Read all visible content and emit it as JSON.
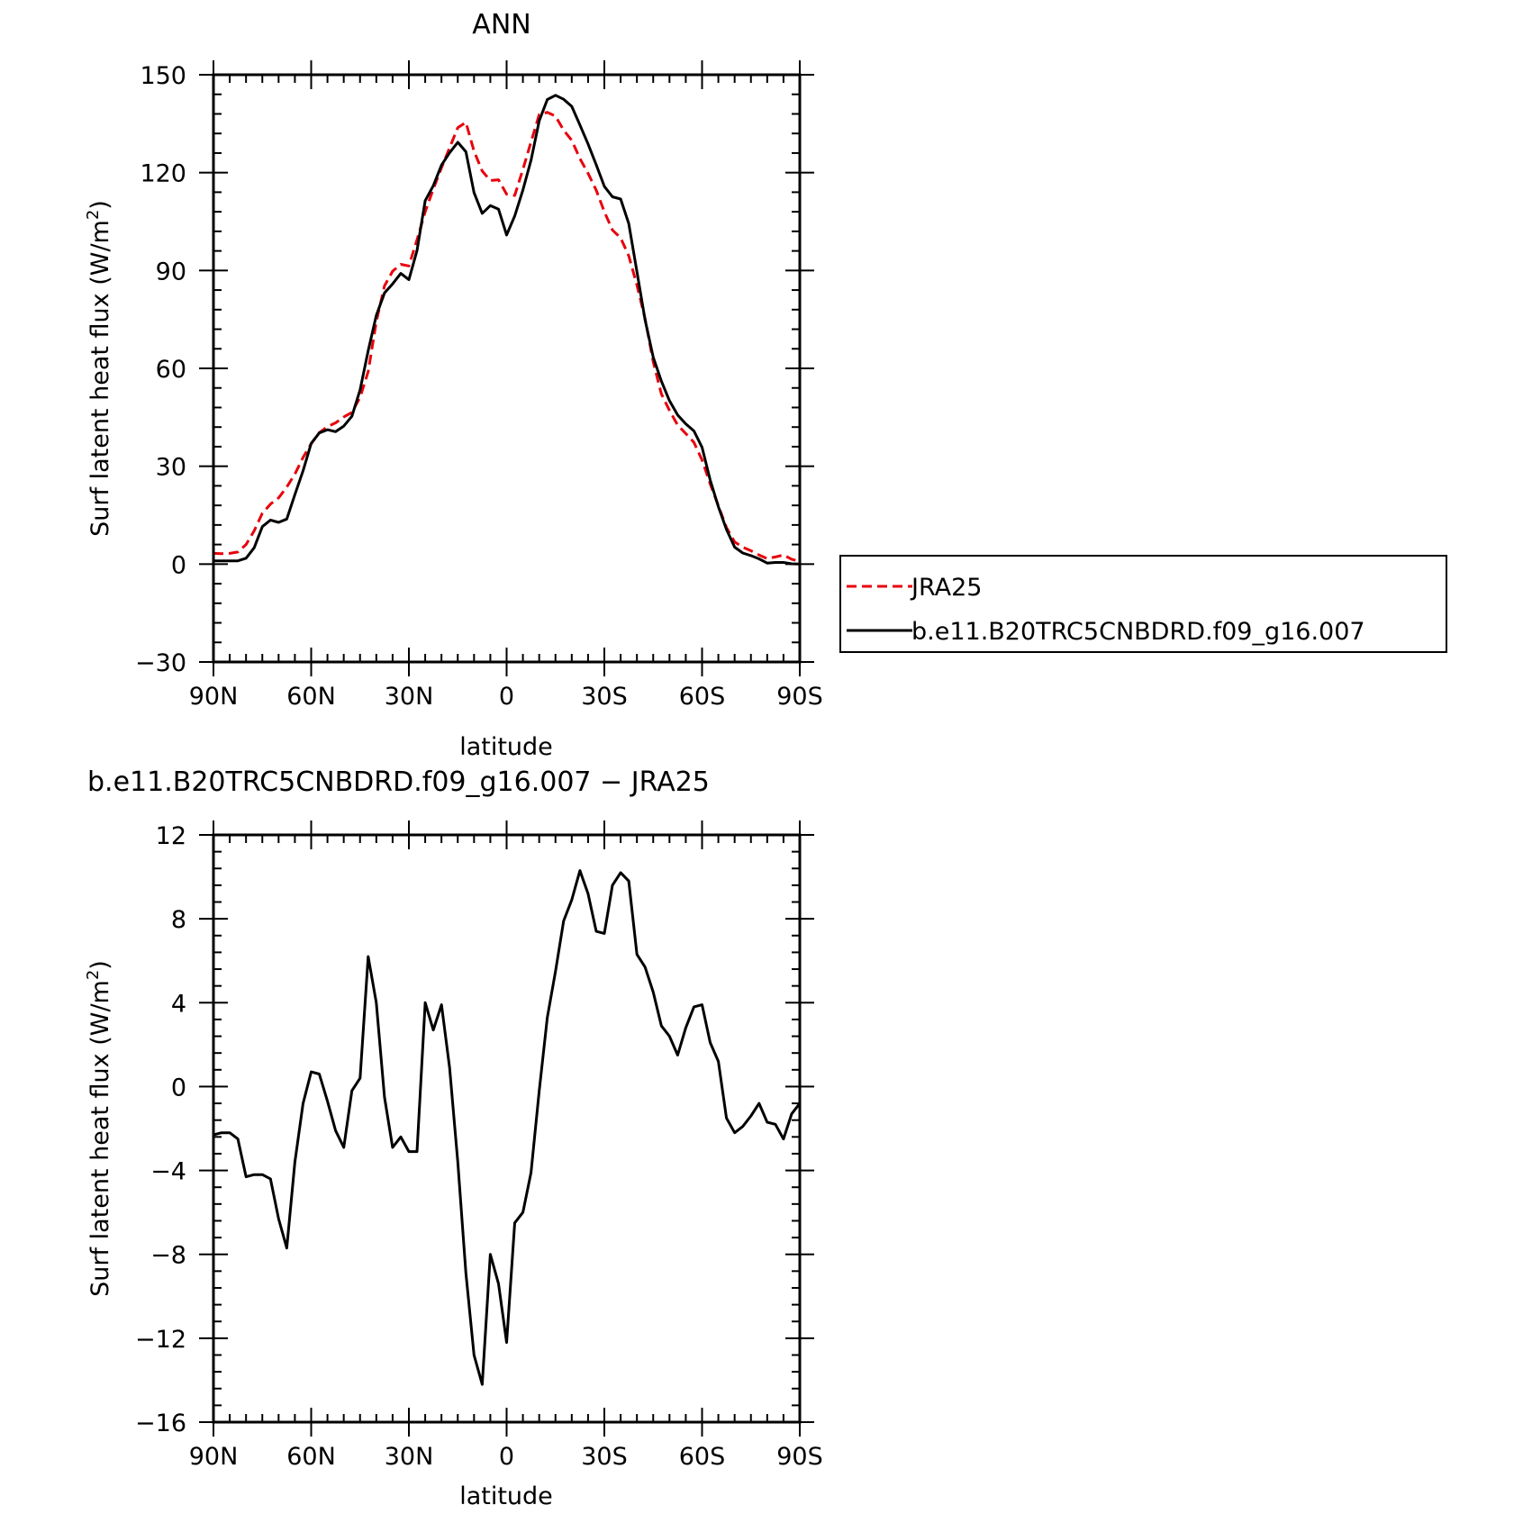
{
  "colors": {
    "model": "#000000",
    "obs": "#e8000b",
    "frame": "#000000",
    "background": "#ffffff"
  },
  "chart_data": [
    {
      "type": "line",
      "title": "ANN",
      "xlabel": "latitude",
      "ylabel": "Surf latent heat flux (W/m²)",
      "xlim": [
        90,
        -90
      ],
      "ylim": [
        -30,
        150
      ],
      "x_ticks": [
        90,
        60,
        30,
        0,
        -30,
        -60,
        -90
      ],
      "x_tick_labels": [
        "90N",
        "60N",
        "30N",
        "0",
        "30S",
        "60S",
        "90S"
      ],
      "y_ticks": [
        -30,
        0,
        30,
        60,
        90,
        120,
        150
      ],
      "y_tick_labels": [
        "−30",
        "0",
        "30",
        "60",
        "90",
        "120",
        "150"
      ],
      "legend": {
        "position": "right"
      },
      "series": [
        {
          "name": "JRA25",
          "style": "dashed",
          "color": "#e8000b",
          "x": [
            90,
            87.5,
            85,
            82.5,
            80,
            77.5,
            75,
            72.5,
            70,
            67.5,
            65,
            62.5,
            60,
            57.5,
            55,
            52.5,
            50,
            47.5,
            45,
            42.5,
            40,
            37.5,
            35,
            32.5,
            30,
            27.5,
            25,
            22.5,
            20,
            17.5,
            15,
            12.5,
            10,
            7.5,
            5,
            2.5,
            0,
            -2.5,
            -5,
            -7.5,
            -10,
            -12.5,
            -15,
            -17.5,
            -20,
            -22.5,
            -25,
            -27.5,
            -30,
            -32.5,
            -35,
            -37.5,
            -40,
            -42.5,
            -45,
            -47.5,
            -50,
            -52.5,
            -55,
            -57.5,
            -60,
            -62.5,
            -65,
            -67.5,
            -70,
            -72.5,
            -75,
            -77.5,
            -80,
            -82.5,
            -85,
            -87.5,
            -90
          ],
          "values": [
            3.3,
            3.2,
            3.3,
            3.7,
            6.0,
            10.2,
            15.6,
            18.4,
            20.3,
            23.6,
            27.6,
            32.7,
            36.9,
            40.3,
            42.1,
            43.3,
            45.1,
            46.5,
            51.1,
            59.0,
            74.3,
            85.3,
            89.8,
            91.9,
            91.4,
            99.4,
            108.0,
            115.0,
            121.5,
            127.6,
            133.8,
            135.4,
            126.6,
            120.5,
            117.6,
            117.8,
            113.4,
            113.0,
            121.0,
            129.4,
            137.8,
            138.5,
            137.3,
            133.0,
            129.9,
            124.3,
            119.8,
            114.6,
            108.0,
            102.4,
            100.0,
            94.5,
            85.5,
            75.3,
            62.0,
            52.2,
            47.1,
            42.6,
            40.0,
            37.3,
            31.9,
            24.6,
            17.9,
            11.2,
            6.8,
            5.2,
            4.1,
            2.8,
            1.7,
            2.2,
            2.8,
            1.5,
            0.8
          ]
        },
        {
          "name": "b.e11.B20TRC5CNBDRD.f09_g16.007",
          "style": "solid",
          "color": "#000000",
          "x": [
            90,
            87.5,
            85,
            82.5,
            80,
            77.5,
            75,
            72.5,
            70,
            67.5,
            65,
            62.5,
            60,
            57.5,
            55,
            52.5,
            50,
            47.5,
            45,
            42.5,
            40,
            37.5,
            35,
            32.5,
            30,
            27.5,
            25,
            22.5,
            20,
            17.5,
            15,
            12.5,
            10,
            7.5,
            5,
            2.5,
            0,
            -2.5,
            -5,
            -7.5,
            -10,
            -12.5,
            -15,
            -17.5,
            -20,
            -22.5,
            -25,
            -27.5,
            -30,
            -32.5,
            -35,
            -37.5,
            -40,
            -42.5,
            -45,
            -47.5,
            -50,
            -52.5,
            -55,
            -57.5,
            -60,
            -62.5,
            -65,
            -67.5,
            -70,
            -72.5,
            -75,
            -77.5,
            -80,
            -82.5,
            -85,
            -87.5,
            -90
          ],
          "values": [
            1.0,
            1.0,
            1.0,
            1.0,
            1.8,
            5.0,
            11.5,
            13.5,
            12.8,
            13.8,
            21.3,
            28.6,
            37.0,
            40.2,
            41.2,
            40.6,
            42.3,
            45.3,
            53.4,
            65.4,
            76.2,
            83.1,
            85.9,
            89.1,
            87.2,
            96.1,
            111.4,
            116.0,
            122.3,
            126.1,
            129.3,
            126.4,
            113.9,
            107.5,
            109.9,
            108.8,
            100.9,
            106.7,
            114.7,
            123.8,
            135.9,
            142.4,
            143.7,
            142.5,
            140.3,
            134.6,
            128.8,
            122.4,
            115.8,
            112.6,
            111.9,
            104.4,
            89.6,
            74.9,
            63.4,
            56.1,
            50.1,
            45.7,
            43.0,
            40.8,
            35.8,
            25.8,
            17.6,
            10.6,
            5.2,
            3.4,
            2.6,
            1.6,
            0.3,
            0.5,
            0.5,
            0.1,
            0.0
          ]
        }
      ]
    },
    {
      "type": "line",
      "title": "b.e11.B20TRC5CNBDRD.f09_g16.007 − JRA25",
      "xlabel": "latitude",
      "ylabel": "Surf latent heat flux (W/m²)",
      "xlim": [
        90,
        -90
      ],
      "ylim": [
        -16,
        12
      ],
      "x_ticks": [
        90,
        60,
        30,
        0,
        -30,
        -60,
        -90
      ],
      "x_tick_labels": [
        "90N",
        "60N",
        "30N",
        "0",
        "30S",
        "60S",
        "90S"
      ],
      "y_ticks": [
        -16,
        -12,
        -8,
        -4,
        0,
        4,
        8,
        12
      ],
      "y_tick_labels": [
        "−16",
        "−12",
        "−8",
        "−4",
        "0",
        "4",
        "8",
        "12"
      ],
      "series": [
        {
          "style": "solid",
          "color": "#000000",
          "x": [
            90,
            87.5,
            85,
            82.5,
            80,
            77.5,
            75,
            72.5,
            70,
            67.5,
            65,
            62.5,
            60,
            57.5,
            55,
            52.5,
            50,
            47.5,
            45,
            42.5,
            40,
            37.5,
            35,
            32.5,
            30,
            27.5,
            25,
            22.5,
            20,
            17.5,
            15,
            12.5,
            10,
            7.5,
            5,
            2.5,
            0,
            -2.5,
            -5,
            -7.5,
            -10,
            -12.5,
            -15,
            -17.5,
            -20,
            -22.5,
            -25,
            -27.5,
            -30,
            -32.5,
            -35,
            -37.5,
            -40,
            -42.5,
            -45,
            -47.5,
            -50,
            -52.5,
            -55,
            -57.5,
            -60,
            -62.5,
            -65,
            -67.5,
            -70,
            -72.5,
            -75,
            -77.5,
            -80,
            -82.5,
            -85,
            -87.5,
            -90
          ],
          "values": [
            -2.3,
            -2.2,
            -2.2,
            -2.5,
            -4.3,
            -4.2,
            -4.2,
            -4.4,
            -6.3,
            -7.7,
            -3.6,
            -0.8,
            0.7,
            0.6,
            -0.7,
            -2.1,
            -2.9,
            -0.2,
            0.4,
            6.2,
            4.0,
            -0.5,
            -2.9,
            -2.4,
            -3.1,
            -3.1,
            4.0,
            2.7,
            3.9,
            0.9,
            -3.6,
            -8.9,
            -12.8,
            -14.2,
            -8.0,
            -9.4,
            -12.2,
            -6.5,
            -6.0,
            -4.1,
            -0.2,
            3.3,
            5.5,
            7.9,
            8.9,
            10.3,
            9.2,
            7.4,
            7.3,
            9.6,
            10.2,
            9.8,
            6.3,
            5.7,
            4.5,
            2.9,
            2.4,
            1.5,
            2.8,
            3.8,
            3.9,
            2.1,
            1.2,
            -1.5,
            -2.2,
            -1.9,
            -1.4,
            -0.8,
            -1.7,
            -1.8,
            -2.5,
            -1.3,
            -0.8
          ]
        }
      ]
    }
  ]
}
